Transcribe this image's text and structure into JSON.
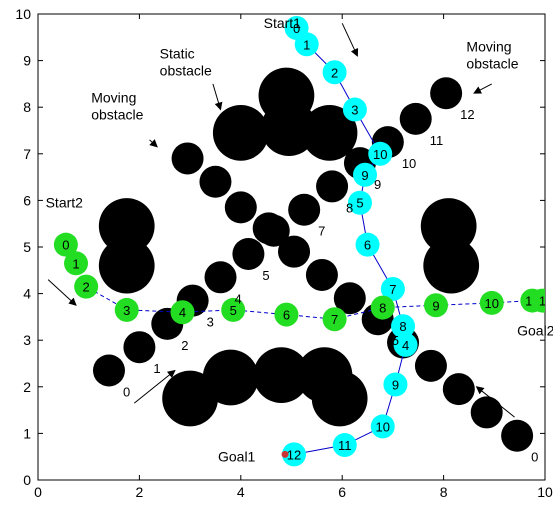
{
  "chart_data": {
    "type": "scatter",
    "xlim": [
      0,
      10
    ],
    "ylim": [
      0,
      10
    ],
    "x_ticks": [
      "0",
      "2",
      "4",
      "6",
      "8",
      "10"
    ],
    "y_ticks": [
      "0",
      "1",
      "2",
      "3",
      "4",
      "5",
      "6",
      "7",
      "8",
      "9",
      "10"
    ],
    "grid": false,
    "colors": {
      "obstacle": "#000000",
      "robot1": "#00ffff",
      "robot2": "#22dd22",
      "path": "#0000cc",
      "goal1_marker": "#cc3333"
    },
    "annotations": [
      {
        "id": "static-obstacle",
        "text": "Static\nobstacle",
        "x": 2.4,
        "y": 9.05,
        "arrow_from": [
          3.45,
          8.5
        ],
        "arrow_to": [
          3.6,
          7.95
        ]
      },
      {
        "id": "moving-obstacle-left",
        "text": "Moving\nobstacle",
        "x": 1.05,
        "y": 8.1,
        "arrow_from": [
          2.2,
          7.3
        ],
        "arrow_to": [
          2.35,
          7.15
        ]
      },
      {
        "id": "moving-obstacle-right",
        "text": "Moving\nobstacle",
        "x": 8.45,
        "y": 9.2,
        "arrow_from": [
          8.95,
          8.5
        ],
        "arrow_to": [
          8.6,
          8.3
        ]
      },
      {
        "id": "start1",
        "text": "Start1",
        "x": 4.45,
        "y": 9.7,
        "arrow_from": [
          6.0,
          9.8
        ],
        "arrow_to": [
          6.3,
          9.1
        ]
      },
      {
        "id": "start2",
        "text": "Start2",
        "x": 0.15,
        "y": 5.85,
        "arrow_from": [
          0.2,
          4.3
        ],
        "arrow_to": [
          0.75,
          3.75
        ]
      },
      {
        "id": "goal1",
        "text": "Goal1",
        "x": 3.55,
        "y": 0.4
      },
      {
        "id": "goal2",
        "text": "Goal2",
        "x": 9.45,
        "y": 3.1
      },
      {
        "id": "arrow-bottom-left",
        "text": "",
        "arrow_from": [
          1.9,
          1.65
        ],
        "arrow_to": [
          2.7,
          2.35
        ]
      },
      {
        "id": "arrow-bottom-right",
        "text": "",
        "arrow_from": [
          9.4,
          1.35
        ],
        "arrow_to": [
          8.65,
          2.0
        ]
      }
    ],
    "static_obstacles": [
      {
        "x": 4.0,
        "y": 7.45,
        "r": 0.55
      },
      {
        "x": 4.9,
        "y": 8.25,
        "r": 0.55
      },
      {
        "x": 4.95,
        "y": 7.55,
        "r": 0.55
      },
      {
        "x": 5.75,
        "y": 7.45,
        "r": 0.55
      },
      {
        "x": 1.75,
        "y": 5.45,
        "r": 0.55
      },
      {
        "x": 1.75,
        "y": 4.6,
        "r": 0.55
      },
      {
        "x": 8.1,
        "y": 5.45,
        "r": 0.55
      },
      {
        "x": 8.15,
        "y": 4.6,
        "r": 0.55
      },
      {
        "x": 3.0,
        "y": 1.75,
        "r": 0.55
      },
      {
        "x": 3.8,
        "y": 2.2,
        "r": 0.55
      },
      {
        "x": 4.8,
        "y": 2.25,
        "r": 0.55
      },
      {
        "x": 5.65,
        "y": 2.25,
        "r": 0.55
      },
      {
        "x": 5.95,
        "y": 1.75,
        "r": 0.55
      }
    ],
    "moving_obstacles": [
      {
        "name": "diag-up",
        "points": [
          {
            "x": 1.4,
            "y": 2.35,
            "label": "0"
          },
          {
            "x": 2.0,
            "y": 2.85,
            "label": "1"
          },
          {
            "x": 2.55,
            "y": 3.35,
            "label": "2"
          },
          {
            "x": 3.05,
            "y": 3.85,
            "label": "3"
          },
          {
            "x": 3.6,
            "y": 4.35,
            "label": "4"
          },
          {
            "x": 4.15,
            "y": 4.85,
            "label": "5"
          },
          {
            "x": 4.65,
            "y": 5.35,
            "label": "6"
          },
          {
            "x": 5.25,
            "y": 5.8,
            "label": "7"
          },
          {
            "x": 5.8,
            "y": 6.3,
            "label": "8"
          },
          {
            "x": 6.35,
            "y": 6.8,
            "label": "9"
          },
          {
            "x": 6.9,
            "y": 7.25,
            "label": "10"
          },
          {
            "x": 7.45,
            "y": 7.75,
            "label": "11"
          },
          {
            "x": 8.05,
            "y": 8.3,
            "label": "12"
          }
        ]
      },
      {
        "name": "diag-down",
        "points": [
          {
            "x": 2.95,
            "y": 6.9,
            "label": "1"
          },
          {
            "x": 3.5,
            "y": 6.4,
            "label": "1"
          },
          {
            "x": 4.0,
            "y": 5.85,
            "label": "1"
          },
          {
            "x": 4.55,
            "y": 5.4,
            "label": "9"
          },
          {
            "x": 5.05,
            "y": 4.9,
            "label": "8"
          },
          {
            "x": 5.6,
            "y": 4.4,
            "label": "7"
          },
          {
            "x": 6.15,
            "y": 3.9,
            "label": "6"
          },
          {
            "x": 6.7,
            "y": 3.45,
            "label": "5"
          },
          {
            "x": 7.2,
            "y": 2.95,
            "label": "4"
          },
          {
            "x": 7.75,
            "y": 2.45,
            "label": "3"
          },
          {
            "x": 8.3,
            "y": 1.95,
            "label": "2"
          },
          {
            "x": 8.85,
            "y": 1.45,
            "label": "1"
          },
          {
            "x": 9.45,
            "y": 0.95,
            "label": "0"
          }
        ]
      }
    ],
    "series": [
      {
        "name": "Robot 1",
        "points": [
          {
            "x": 5.1,
            "y": 9.7,
            "label": "0"
          },
          {
            "x": 5.3,
            "y": 9.35,
            "label": "1"
          },
          {
            "x": 5.85,
            "y": 8.75,
            "label": "2"
          },
          {
            "x": 6.25,
            "y": 7.95,
            "label": "3"
          },
          {
            "x": 6.75,
            "y": 7.0,
            "label": "10"
          },
          {
            "x": 6.45,
            "y": 6.55,
            "label": "9"
          },
          {
            "x": 6.35,
            "y": 5.95,
            "label": "5"
          },
          {
            "x": 6.5,
            "y": 5.05,
            "label": "6"
          },
          {
            "x": 7.0,
            "y": 4.1,
            "label": "7"
          },
          {
            "x": 7.2,
            "y": 3.3,
            "label": "8"
          },
          {
            "x": 7.25,
            "y": 2.9,
            "label": "4"
          },
          {
            "x": 7.05,
            "y": 2.05,
            "label": "9"
          },
          {
            "x": 6.8,
            "y": 1.15,
            "label": "10"
          },
          {
            "x": 6.05,
            "y": 0.75,
            "label": "11"
          },
          {
            "x": 5.05,
            "y": 0.55,
            "label": "12"
          }
        ]
      },
      {
        "name": "Robot 2",
        "points": [
          {
            "x": 0.55,
            "y": 5.05,
            "label": "0"
          },
          {
            "x": 0.75,
            "y": 4.65,
            "label": "1"
          },
          {
            "x": 0.95,
            "y": 4.15,
            "label": "2"
          },
          {
            "x": 1.75,
            "y": 3.65,
            "label": "3"
          },
          {
            "x": 2.85,
            "y": 3.6,
            "label": "4"
          },
          {
            "x": 3.85,
            "y": 3.65,
            "label": "5"
          },
          {
            "x": 4.9,
            "y": 3.55,
            "label": "6"
          },
          {
            "x": 5.85,
            "y": 3.45,
            "label": "7"
          },
          {
            "x": 6.8,
            "y": 3.7,
            "label": "8"
          },
          {
            "x": 7.85,
            "y": 3.75,
            "label": "9"
          },
          {
            "x": 8.95,
            "y": 3.8,
            "label": "10"
          },
          {
            "x": 9.75,
            "y": 3.85,
            "label": "12"
          },
          {
            "x": 9.95,
            "y": 3.85,
            "label": "1"
          }
        ]
      }
    ]
  }
}
